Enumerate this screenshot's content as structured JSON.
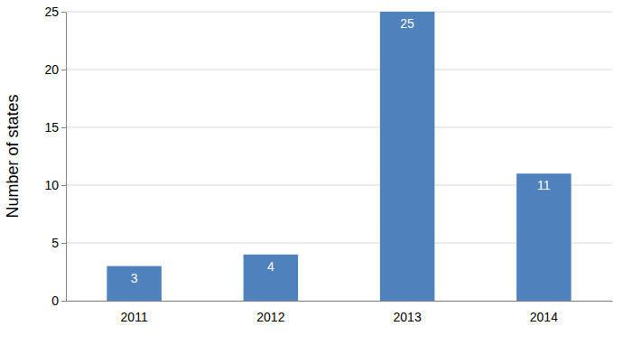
{
  "chart_data": {
    "type": "bar",
    "categories": [
      "2011",
      "2012",
      "2013",
      "2014"
    ],
    "values": [
      3,
      4,
      25,
      11
    ],
    "color": "#4f81bd",
    "ylim": [
      0,
      25
    ],
    "yticks": [
      0,
      5,
      10,
      15,
      20,
      25
    ],
    "grid": true,
    "data_labels": true,
    "ylabel": "Number of states"
  }
}
